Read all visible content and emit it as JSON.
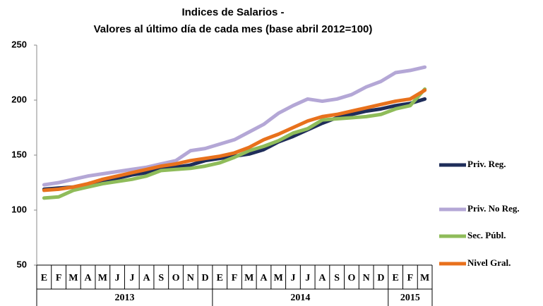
{
  "chart_data": {
    "type": "line",
    "title": "Indices de Salarios -",
    "subtitle": "Valores al último día de cada mes (base abril 2012=100)",
    "categories": [
      "E",
      "F",
      "M",
      "A",
      "M",
      "J",
      "J",
      "A",
      "S",
      "O",
      "N",
      "D",
      "E",
      "F",
      "M",
      "A",
      "M",
      "J",
      "J",
      "A",
      "S",
      "O",
      "N",
      "D",
      "E",
      "F",
      "M"
    ],
    "groups": [
      {
        "label": "2013",
        "span": 12
      },
      {
        "label": "2014",
        "span": 12
      },
      {
        "label": "2015",
        "span": 3
      }
    ],
    "ylim": [
      50,
      250
    ],
    "yticks": [
      50,
      100,
      150,
      200,
      250
    ],
    "series": [
      {
        "name": "Priv. Reg.",
        "color": "#1f2d5a",
        "values": [
          119,
          120,
          121,
          123,
          126,
          129,
          132,
          134,
          137,
          139,
          141,
          145,
          147,
          149,
          151,
          155,
          162,
          167,
          173,
          179,
          184,
          187,
          190,
          192,
          195,
          197,
          201
        ]
      },
      {
        "name": "Priv. No Reg.",
        "color": "#b4a7d6",
        "values": [
          123,
          125,
          128,
          131,
          133,
          135,
          137,
          139,
          142,
          145,
          154,
          156,
          160,
          164,
          171,
          178,
          188,
          195,
          201,
          199,
          201,
          205,
          212,
          217,
          225,
          227,
          230
        ]
      },
      {
        "name": "Sec. Públ.",
        "color": "#8fbc5a",
        "values": [
          111,
          112,
          118,
          121,
          124,
          126,
          128,
          131,
          136,
          137,
          138,
          140,
          143,
          148,
          154,
          158,
          163,
          170,
          174,
          182,
          183,
          184,
          185,
          187,
          192,
          195,
          210
        ]
      },
      {
        "name": "Nivel Gral.",
        "color": "#e8711c",
        "values": [
          118,
          119,
          121,
          124,
          128,
          131,
          134,
          137,
          140,
          142,
          145,
          147,
          149,
          152,
          157,
          164,
          169,
          175,
          181,
          185,
          187,
          190,
          193,
          196,
          199,
          201,
          209
        ]
      }
    ]
  }
}
